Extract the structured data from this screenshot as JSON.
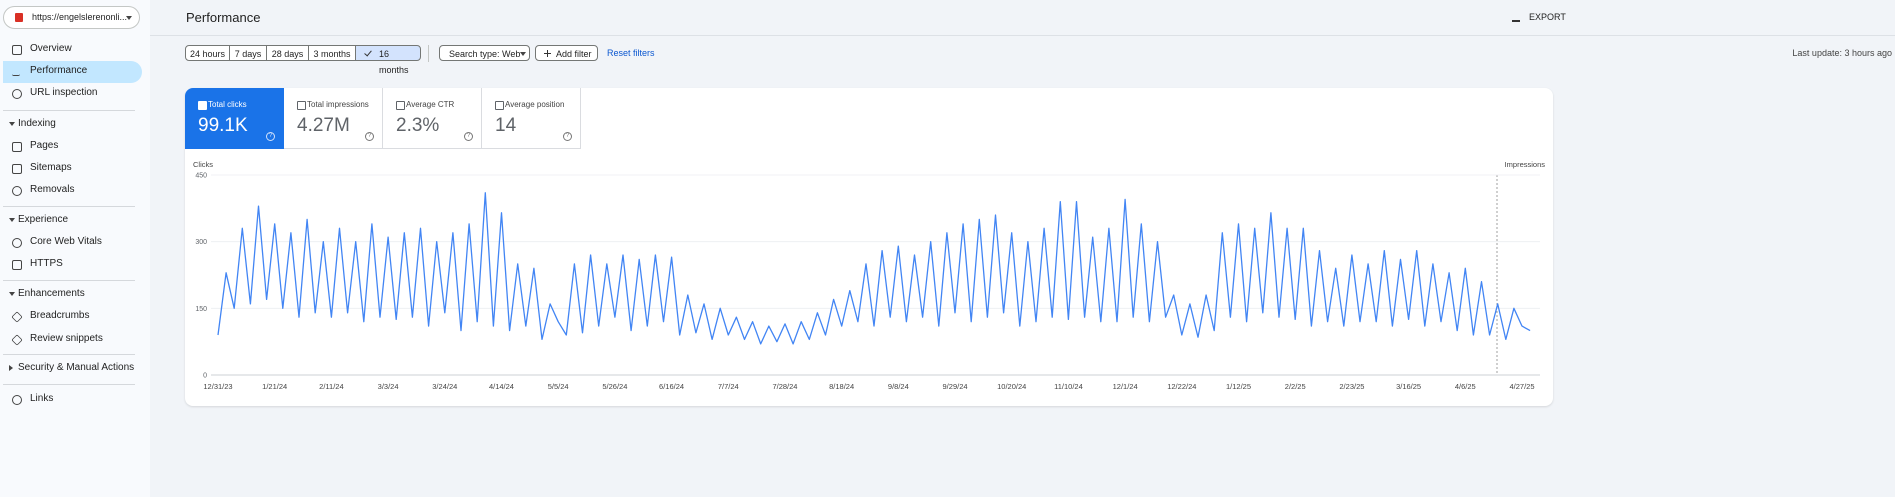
{
  "sidebar": {
    "property": "https://engelslerenonli...",
    "top": [
      "Overview",
      "Performance",
      "URL inspection"
    ],
    "groups": [
      {
        "title": "Indexing",
        "items": [
          "Pages",
          "Sitemaps",
          "Removals"
        ]
      },
      {
        "title": "Experience",
        "items": [
          "Core Web Vitals",
          "HTTPS"
        ]
      },
      {
        "title": "Enhancements",
        "items": [
          "Breadcrumbs",
          "Review snippets"
        ]
      },
      {
        "title": "Security & Manual Actions"
      }
    ],
    "bottom": [
      "Links"
    ]
  },
  "header": {
    "title": "Performance",
    "export": "EXPORT"
  },
  "filters": {
    "ranges": [
      "24 hours",
      "7 days",
      "28 days",
      "3 months",
      "16 months"
    ],
    "search_type": "Search type: Web",
    "add_filter": "Add filter",
    "reset": "Reset filters",
    "last_update": "Last update: 3 hours ago"
  },
  "metrics": [
    {
      "label": "Total clicks",
      "value": "99.1K"
    },
    {
      "label": "Total impressions",
      "value": "4.27M"
    },
    {
      "label": "Average CTR",
      "value": "2.3%"
    },
    {
      "label": "Average position",
      "value": "14"
    }
  ],
  "chart_data": {
    "type": "line",
    "y_label": "Clicks",
    "y2_label": "Impressions",
    "color": "#4285f4",
    "ylim": [
      0,
      450
    ],
    "yticks": [
      0,
      150,
      300,
      450
    ],
    "grid": true,
    "categories": [
      "12/31/23",
      null,
      null,
      null,
      null,
      null,
      null,
      "1/21/24",
      null,
      null,
      null,
      null,
      null,
      null,
      "2/11/24",
      null,
      null,
      null,
      null,
      null,
      null,
      "3/3/24",
      null,
      null,
      null,
      null,
      null,
      null,
      "3/24/24",
      null,
      null,
      null,
      null,
      null,
      null,
      "4/14/24",
      null,
      null,
      null,
      null,
      null,
      null,
      "5/5/24",
      null,
      null,
      null,
      null,
      null,
      null,
      "5/26/24",
      null,
      null,
      null,
      null,
      null,
      null,
      "6/16/24",
      null,
      null,
      null,
      null,
      null,
      null,
      "7/7/24",
      null,
      null,
      null,
      null,
      null,
      null,
      "7/28/24",
      null,
      null,
      null,
      null,
      null,
      null,
      "8/18/24",
      null,
      null,
      null,
      null,
      null,
      null,
      "9/8/24",
      null,
      null,
      null,
      null,
      null,
      null,
      "9/29/24",
      null,
      null,
      null,
      null,
      null,
      null,
      "10/20/24",
      null,
      null,
      null,
      null,
      null,
      null,
      "11/10/24",
      null,
      null,
      null,
      null,
      null,
      null,
      "12/1/24",
      null,
      null,
      null,
      null,
      null,
      null,
      "12/22/24",
      null,
      null,
      null,
      null,
      null,
      null,
      "1/12/25",
      null,
      null,
      null,
      null,
      null,
      null,
      "2/2/25",
      null,
      null,
      null,
      null,
      null,
      null,
      "2/23/25",
      null,
      null,
      null,
      null,
      null,
      null,
      "3/16/25",
      null,
      null,
      null,
      null,
      null,
      null,
      "4/6/25",
      null,
      null,
      null,
      null,
      null,
      null,
      "4/27/25",
      null
    ],
    "values": [
      90,
      230,
      150,
      330,
      160,
      380,
      170,
      340,
      150,
      320,
      130,
      350,
      140,
      300,
      130,
      330,
      140,
      300,
      120,
      340,
      130,
      310,
      125,
      320,
      130,
      330,
      110,
      300,
      140,
      320,
      100,
      340,
      120,
      410,
      110,
      365,
      100,
      250,
      110,
      240,
      80,
      160,
      120,
      90,
      250,
      95,
      270,
      110,
      250,
      130,
      270,
      100,
      260,
      110,
      270,
      120,
      265,
      90,
      180,
      95,
      160,
      80,
      150,
      90,
      130,
      80,
      120,
      70,
      110,
      75,
      115,
      70,
      120,
      80,
      140,
      90,
      170,
      110,
      190,
      120,
      250,
      110,
      280,
      130,
      290,
      120,
      270,
      130,
      300,
      110,
      320,
      140,
      340,
      120,
      350,
      130,
      360,
      140,
      320,
      110,
      300,
      120,
      330,
      130,
      390,
      125,
      390,
      130,
      310,
      120,
      330,
      120,
      395,
      130,
      340,
      120,
      300,
      130,
      180,
      90,
      160,
      85,
      180,
      100,
      320,
      130,
      340,
      120,
      330,
      140,
      365,
      130,
      330,
      125,
      330,
      110,
      280,
      120,
      240,
      110,
      270,
      120,
      250,
      120,
      280,
      110,
      260,
      125,
      280,
      110,
      250,
      120,
      230,
      100,
      240,
      90,
      210,
      90,
      160,
      80,
      150,
      110,
      100
    ]
  }
}
